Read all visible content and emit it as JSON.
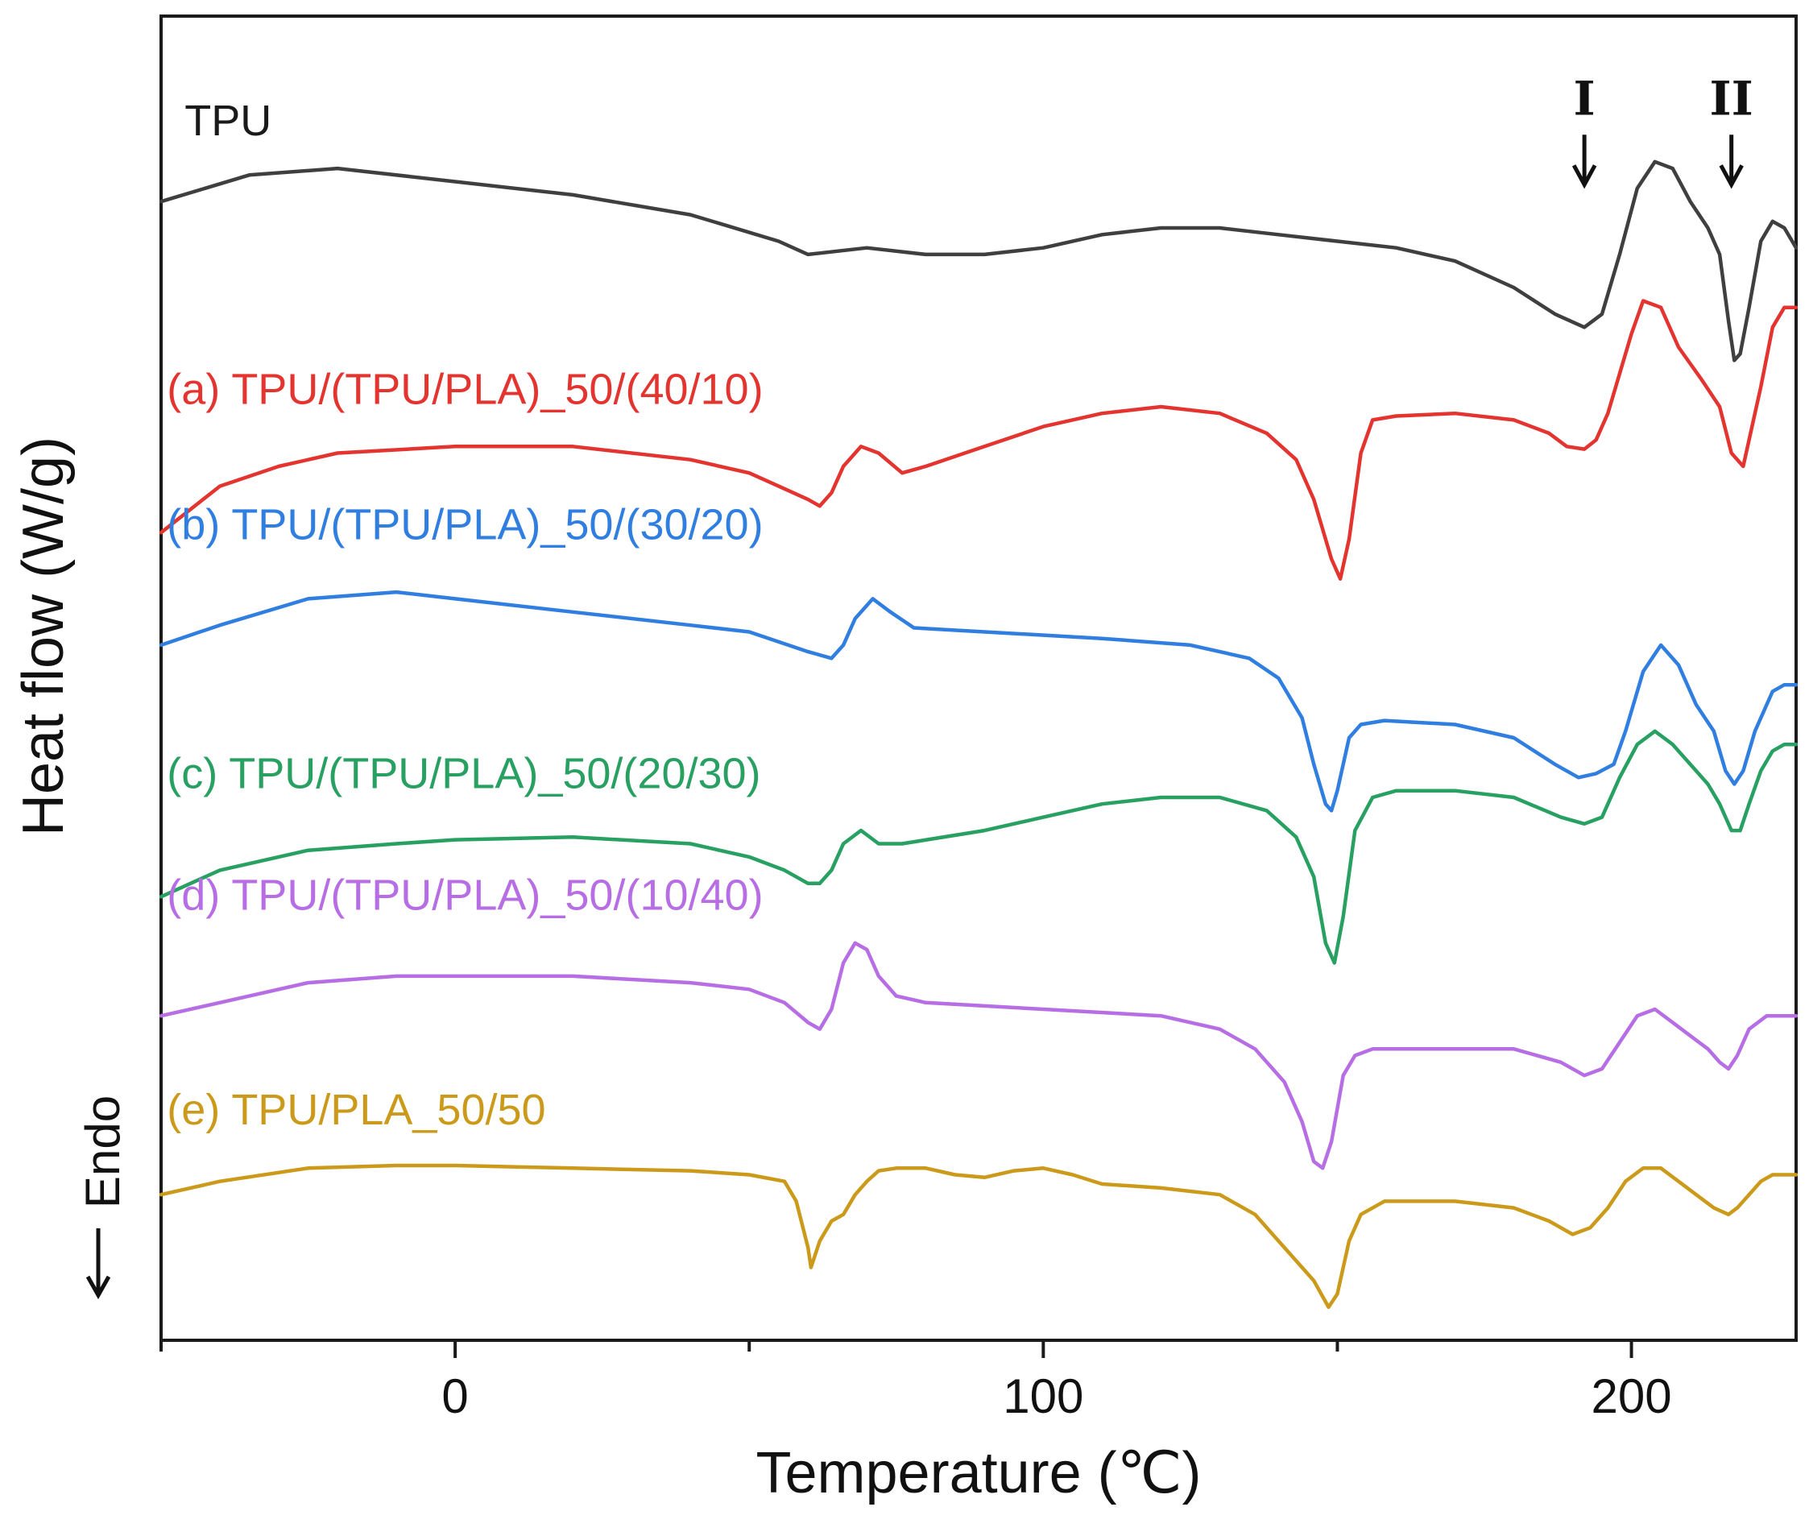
{
  "chart_data": {
    "type": "line",
    "title": "",
    "xlabel": "Temperature (℃)",
    "ylabel": "Heat flow (W/g)",
    "xlim": [
      -50,
      228
    ],
    "ylim": [
      0,
      100
    ],
    "x_ticks": [
      0,
      100,
      200
    ],
    "x_tick_labels": [
      "0",
      "100",
      "200"
    ],
    "yticks_shown": false,
    "endo_annotation": "Endo",
    "markers": [
      {
        "label": "I",
        "x": 192,
        "y": 88
      },
      {
        "label": "II",
        "x": 217,
        "y": 88
      }
    ],
    "series": [
      {
        "name": "TPU",
        "color": "#3f3f3f",
        "label_color": "#1a1a1a",
        "label_at": {
          "x": -46,
          "y": 91.0
        },
        "points": [
          [
            -50,
            86.0
          ],
          [
            -35,
            88.0
          ],
          [
            -20,
            88.5
          ],
          [
            0,
            87.5
          ],
          [
            20,
            86.5
          ],
          [
            40,
            85.0
          ],
          [
            55,
            83.0
          ],
          [
            60,
            82.0
          ],
          [
            70,
            82.5
          ],
          [
            80,
            82.0
          ],
          [
            90,
            82.0
          ],
          [
            100,
            82.5
          ],
          [
            110,
            83.5
          ],
          [
            120,
            84.0
          ],
          [
            130,
            84.0
          ],
          [
            140,
            83.5
          ],
          [
            150,
            83.0
          ],
          [
            160,
            82.5
          ],
          [
            170,
            81.5
          ],
          [
            180,
            79.5
          ],
          [
            187,
            77.5
          ],
          [
            192,
            76.5
          ],
          [
            195,
            77.5
          ],
          [
            198,
            82.0
          ],
          [
            201,
            87.0
          ],
          [
            204,
            89.0
          ],
          [
            207,
            88.5
          ],
          [
            210,
            86.0
          ],
          [
            213,
            84.0
          ],
          [
            215,
            82.0
          ],
          [
            216.5,
            77.0
          ],
          [
            217.5,
            74.0
          ],
          [
            218.5,
            74.5
          ],
          [
            220,
            78.0
          ],
          [
            222,
            83.0
          ],
          [
            224,
            84.5
          ],
          [
            226,
            84.0
          ],
          [
            228,
            82.5
          ]
        ]
      },
      {
        "name": "(a) TPU/(TPU/PLA)_50/(40/10)",
        "color": "#e3342f",
        "label_color": "#e3342f",
        "label_at": {
          "x": -49,
          "y": 70.7
        },
        "points": [
          [
            -50,
            61.0
          ],
          [
            -40,
            64.5
          ],
          [
            -30,
            66.0
          ],
          [
            -20,
            67.0
          ],
          [
            0,
            67.5
          ],
          [
            20,
            67.5
          ],
          [
            40,
            66.5
          ],
          [
            50,
            65.5
          ],
          [
            55,
            64.5
          ],
          [
            60,
            63.5
          ],
          [
            62,
            63.0
          ],
          [
            64,
            64.0
          ],
          [
            66,
            66.0
          ],
          [
            69,
            67.5
          ],
          [
            72,
            67.0
          ],
          [
            76,
            65.5
          ],
          [
            80,
            66.0
          ],
          [
            90,
            67.5
          ],
          [
            100,
            69.0
          ],
          [
            110,
            70.0
          ],
          [
            120,
            70.5
          ],
          [
            130,
            70.0
          ],
          [
            138,
            68.5
          ],
          [
            143,
            66.5
          ],
          [
            146,
            63.5
          ],
          [
            149,
            59.0
          ],
          [
            150.5,
            57.5
          ],
          [
            152,
            60.5
          ],
          [
            154,
            67.0
          ],
          [
            156,
            69.5
          ],
          [
            160,
            69.8
          ],
          [
            170,
            70.0
          ],
          [
            180,
            69.5
          ],
          [
            186,
            68.5
          ],
          [
            189,
            67.5
          ],
          [
            192,
            67.3
          ],
          [
            194,
            68.0
          ],
          [
            196,
            70.0
          ],
          [
            198,
            73.0
          ],
          [
            200,
            76.0
          ],
          [
            202,
            78.5
          ],
          [
            205,
            78.0
          ],
          [
            208,
            75.0
          ],
          [
            212,
            72.5
          ],
          [
            215,
            70.5
          ],
          [
            217,
            67.0
          ],
          [
            219,
            66.0
          ],
          [
            220,
            68.0
          ],
          [
            222,
            72.0
          ],
          [
            224,
            76.5
          ],
          [
            226,
            78.0
          ],
          [
            228,
            78.0
          ]
        ]
      },
      {
        "name": "(b) TPU/(TPU/PLA)_50/(30/20)",
        "color": "#2f7ee0",
        "label_color": "#2f7ee0",
        "label_at": {
          "x": -49,
          "y": 60.5
        },
        "points": [
          [
            -50,
            52.5
          ],
          [
            -40,
            54.0
          ],
          [
            -25,
            56.0
          ],
          [
            -10,
            56.5
          ],
          [
            0,
            56.0
          ],
          [
            20,
            55.0
          ],
          [
            40,
            54.0
          ],
          [
            50,
            53.5
          ],
          [
            60,
            52.0
          ],
          [
            64,
            51.5
          ],
          [
            66,
            52.5
          ],
          [
            68,
            54.5
          ],
          [
            71,
            56.0
          ],
          [
            74,
            55.0
          ],
          [
            78,
            53.8
          ],
          [
            90,
            53.5
          ],
          [
            110,
            53.0
          ],
          [
            125,
            52.5
          ],
          [
            135,
            51.5
          ],
          [
            140,
            50.0
          ],
          [
            144,
            47.0
          ],
          [
            146,
            43.5
          ],
          [
            148,
            40.5
          ],
          [
            149,
            40.0
          ],
          [
            150,
            41.5
          ],
          [
            152,
            45.5
          ],
          [
            154,
            46.5
          ],
          [
            158,
            46.8
          ],
          [
            170,
            46.5
          ],
          [
            180,
            45.5
          ],
          [
            187,
            43.5
          ],
          [
            191,
            42.5
          ],
          [
            194,
            42.8
          ],
          [
            197,
            43.5
          ],
          [
            199,
            46.0
          ],
          [
            202,
            50.5
          ],
          [
            205,
            52.5
          ],
          [
            208,
            51.0
          ],
          [
            211,
            48.0
          ],
          [
            214,
            46.0
          ],
          [
            216,
            43.0
          ],
          [
            217.5,
            42.0
          ],
          [
            219,
            43.0
          ],
          [
            221,
            46.0
          ],
          [
            224,
            49.0
          ],
          [
            226,
            49.5
          ],
          [
            228,
            49.5
          ]
        ]
      },
      {
        "name": "(c) TPU/(TPU/PLA)_50/(20/30)",
        "color": "#27a062",
        "label_color": "#27a062",
        "label_at": {
          "x": -49,
          "y": 41.7
        },
        "points": [
          [
            -50,
            33.5
          ],
          [
            -40,
            35.5
          ],
          [
            -25,
            37.0
          ],
          [
            -10,
            37.5
          ],
          [
            0,
            37.8
          ],
          [
            20,
            38.0
          ],
          [
            40,
            37.5
          ],
          [
            50,
            36.5
          ],
          [
            56,
            35.5
          ],
          [
            60,
            34.5
          ],
          [
            62,
            34.5
          ],
          [
            64,
            35.5
          ],
          [
            66,
            37.5
          ],
          [
            69,
            38.5
          ],
          [
            72,
            37.5
          ],
          [
            76,
            37.5
          ],
          [
            90,
            38.5
          ],
          [
            100,
            39.5
          ],
          [
            110,
            40.5
          ],
          [
            120,
            41.0
          ],
          [
            130,
            41.0
          ],
          [
            138,
            40.0
          ],
          [
            143,
            38.0
          ],
          [
            146,
            35.0
          ],
          [
            148,
            30.0
          ],
          [
            149.5,
            28.5
          ],
          [
            151,
            32.0
          ],
          [
            153,
            38.5
          ],
          [
            156,
            41.0
          ],
          [
            160,
            41.5
          ],
          [
            170,
            41.5
          ],
          [
            180,
            41.0
          ],
          [
            188,
            39.5
          ],
          [
            192,
            39.0
          ],
          [
            195,
            39.5
          ],
          [
            198,
            42.5
          ],
          [
            201,
            45.0
          ],
          [
            204,
            46.0
          ],
          [
            207,
            45.0
          ],
          [
            210,
            43.5
          ],
          [
            213,
            42.0
          ],
          [
            215,
            40.5
          ],
          [
            217,
            38.5
          ],
          [
            218.5,
            38.5
          ],
          [
            220,
            40.5
          ],
          [
            222,
            43.0
          ],
          [
            224,
            44.5
          ],
          [
            226,
            45.0
          ],
          [
            228,
            45.0
          ]
        ]
      },
      {
        "name": "(d) TPU/(TPU/PLA)_50/(10/40)",
        "color": "#b76ee4",
        "label_color": "#b76ee4",
        "label_at": {
          "x": -49,
          "y": 32.5
        },
        "points": [
          [
            -50,
            24.5
          ],
          [
            -40,
            25.5
          ],
          [
            -25,
            27.0
          ],
          [
            -10,
            27.5
          ],
          [
            0,
            27.5
          ],
          [
            20,
            27.5
          ],
          [
            40,
            27.0
          ],
          [
            50,
            26.5
          ],
          [
            56,
            25.5
          ],
          [
            60,
            24.0
          ],
          [
            62,
            23.5
          ],
          [
            64,
            25.0
          ],
          [
            66,
            28.5
          ],
          [
            68,
            30.0
          ],
          [
            70,
            29.5
          ],
          [
            72,
            27.5
          ],
          [
            75,
            26.0
          ],
          [
            80,
            25.5
          ],
          [
            100,
            25.0
          ],
          [
            120,
            24.5
          ],
          [
            130,
            23.5
          ],
          [
            136,
            22.0
          ],
          [
            141,
            19.5
          ],
          [
            144,
            16.5
          ],
          [
            146,
            13.5
          ],
          [
            147.5,
            13.0
          ],
          [
            149,
            15.0
          ],
          [
            151,
            20.0
          ],
          [
            153,
            21.5
          ],
          [
            156,
            22.0
          ],
          [
            170,
            22.0
          ],
          [
            180,
            22.0
          ],
          [
            188,
            21.0
          ],
          [
            192,
            20.0
          ],
          [
            195,
            20.5
          ],
          [
            198,
            22.5
          ],
          [
            201,
            24.5
          ],
          [
            204,
            25.0
          ],
          [
            207,
            24.0
          ],
          [
            210,
            23.0
          ],
          [
            213,
            22.0
          ],
          [
            215,
            21.0
          ],
          [
            216.5,
            20.5
          ],
          [
            218,
            21.5
          ],
          [
            220,
            23.5
          ],
          [
            223,
            24.5
          ],
          [
            226,
            24.5
          ],
          [
            228,
            24.5
          ]
        ]
      },
      {
        "name": "(e) TPU/PLA_50/50",
        "color": "#cc9a1a",
        "label_color": "#cc9a1a",
        "label_at": {
          "x": -49,
          "y": 16.3
        },
        "points": [
          [
            -50,
            11.0
          ],
          [
            -40,
            12.0
          ],
          [
            -25,
            13.0
          ],
          [
            -10,
            13.2
          ],
          [
            0,
            13.2
          ],
          [
            20,
            13.0
          ],
          [
            40,
            12.8
          ],
          [
            50,
            12.5
          ],
          [
            56,
            12.0
          ],
          [
            58,
            10.5
          ],
          [
            60,
            7.0
          ],
          [
            60.5,
            5.5
          ],
          [
            62,
            7.5
          ],
          [
            64,
            9.0
          ],
          [
            66,
            9.5
          ],
          [
            68,
            11.0
          ],
          [
            70,
            12.0
          ],
          [
            72,
            12.8
          ],
          [
            75,
            13.0
          ],
          [
            80,
            13.0
          ],
          [
            85,
            12.5
          ],
          [
            90,
            12.3
          ],
          [
            95,
            12.8
          ],
          [
            100,
            13.0
          ],
          [
            105,
            12.5
          ],
          [
            110,
            11.8
          ],
          [
            120,
            11.5
          ],
          [
            130,
            11.0
          ],
          [
            136,
            9.5
          ],
          [
            140,
            7.5
          ],
          [
            143,
            6.0
          ],
          [
            146,
            4.5
          ],
          [
            148.5,
            2.5
          ],
          [
            150,
            3.5
          ],
          [
            152,
            7.5
          ],
          [
            154,
            9.5
          ],
          [
            158,
            10.5
          ],
          [
            170,
            10.5
          ],
          [
            180,
            10.0
          ],
          [
            186,
            9.0
          ],
          [
            190,
            8.0
          ],
          [
            193,
            8.5
          ],
          [
            196,
            10.0
          ],
          [
            199,
            12.0
          ],
          [
            202,
            13.0
          ],
          [
            205,
            13.0
          ],
          [
            208,
            12.0
          ],
          [
            211,
            11.0
          ],
          [
            214,
            10.0
          ],
          [
            216.5,
            9.5
          ],
          [
            218,
            10.0
          ],
          [
            220,
            11.0
          ],
          [
            222,
            12.0
          ],
          [
            224,
            12.5
          ],
          [
            226,
            12.5
          ],
          [
            228,
            12.5
          ]
        ]
      }
    ]
  }
}
